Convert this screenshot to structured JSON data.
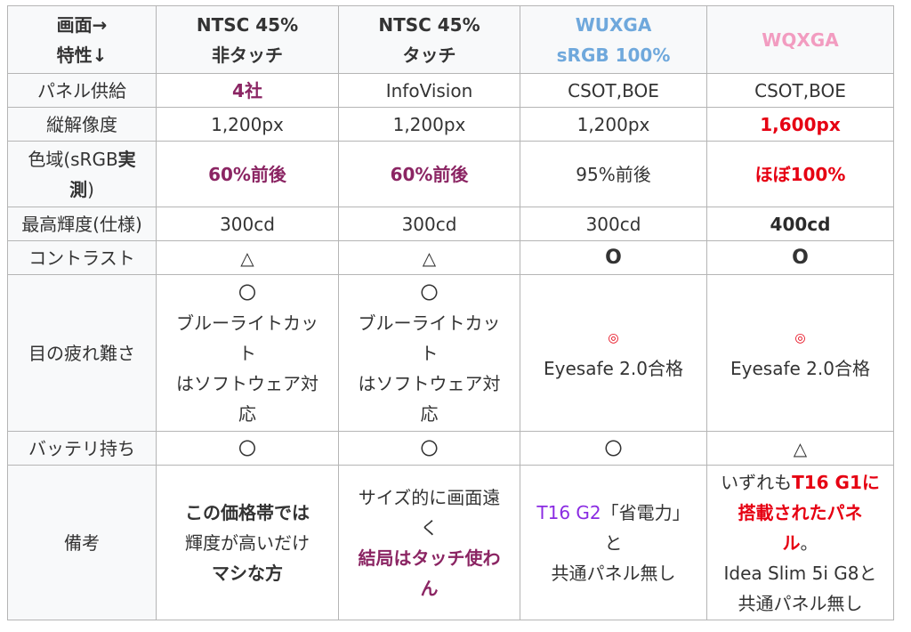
{
  "header": {
    "corner_line1": "画面→",
    "corner_line2": "特性↓",
    "col1_line1": "NTSC 45%",
    "col1_line2": "非タッチ",
    "col2_line1": "NTSC 45%",
    "col2_line2": "タッチ",
    "col3_line1": "WUXGA",
    "col3_line2": "sRGB 100%",
    "col4": "WQXGA"
  },
  "rows": {
    "panel": {
      "label": "パネル供給",
      "c1": "4社",
      "c2": "InfoVision",
      "c3": "CSOT,BOE",
      "c4": "CSOT,BOE"
    },
    "resolution": {
      "label": "縦解像度",
      "c1": "1,200px",
      "c2": "1,200px",
      "c3": "1,200px",
      "c4": "1,600px"
    },
    "gamut": {
      "label_a": "色域(sRGB",
      "label_b": "実",
      "label_c": "測",
      "label_d": ")",
      "c1": "60%前後",
      "c2": "60%前後",
      "c3": "95%前後",
      "c4": "ほぼ100%"
    },
    "brightness": {
      "label": "最高輝度(仕様)",
      "c1": "300cd",
      "c2": "300cd",
      "c3": "300cd",
      "c4": "400cd"
    },
    "contrast": {
      "label": "コントラスト",
      "c1": "△",
      "c2": "△",
      "c3": "O",
      "c4": "O"
    },
    "eye": {
      "label": "目の疲れ難さ",
      "c1_mark": "〇",
      "c1_l1": "ブルーライトカッ",
      "c1_l2": "ト",
      "c1_l3": "はソフトウェア対",
      "c1_l4": "応",
      "c2_mark": "〇",
      "c2_l1": "ブルーライトカッ",
      "c2_l2": "ト",
      "c2_l3": "はソフトウェア対",
      "c2_l4": "応",
      "c3_mark": "◎",
      "c3_text": "Eyesafe 2.0合格",
      "c4_mark": "◎",
      "c4_text": "Eyesafe 2.0合格"
    },
    "battery": {
      "label": "バッテリ持ち",
      "c1": "〇",
      "c2": "〇",
      "c3": "〇",
      "c4": "△"
    },
    "notes": {
      "label": "備考",
      "c1_l1": "この価格帯では",
      "c1_l2": "輝度が高いだけ",
      "c1_l3": "マシな方",
      "c2_l1": "サイズ的に画面遠",
      "c2_l2": "く",
      "c2_l3": "結局はタッチ使わ",
      "c2_l4": "ん",
      "c3_model": "T16 G2",
      "c3_l1": "「省電力」",
      "c3_l2": "と",
      "c3_l3": "共通パネル無し",
      "c4_l1a": "いずれも",
      "c4_l1b": "T16 G1に",
      "c4_l2": "搭載されたパネ",
      "c4_l3a": "ル",
      "c4_l3b": "。",
      "c4_l4": "Idea Slim 5i G8と",
      "c4_l5": "共通パネル無し"
    }
  },
  "colors": {
    "emphasis_purple": "#8b2563",
    "emphasis_red": "#e60012",
    "wuxga_blue": "#6fa8dc",
    "wqxga_pink": "#f29cc0",
    "model_violet": "#8a2be2",
    "border": "#b5b5b5"
  }
}
